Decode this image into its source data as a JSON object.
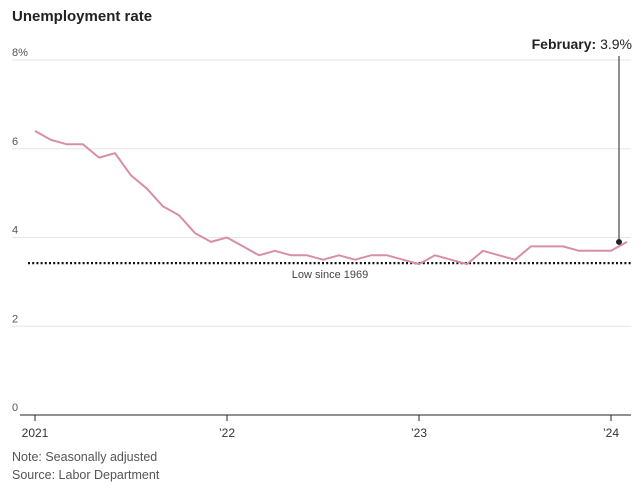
{
  "title": "Unemployment rate",
  "footer": {
    "note": "Note: Seasonally adjusted",
    "source": "Source: Labor Department"
  },
  "colors": {
    "line": "#d88ea8",
    "grid": "#e6e6e6",
    "reference": "#111111",
    "annotation": "#222222"
  },
  "chart_data": {
    "type": "line",
    "title": "Unemployment rate",
    "xlabel": "",
    "ylabel": "",
    "ylim": [
      0,
      8
    ],
    "grid": true,
    "y_ticks": [
      {
        "value": 0,
        "label": "0"
      },
      {
        "value": 2,
        "label": "2"
      },
      {
        "value": 4,
        "label": "4"
      },
      {
        "value": 6,
        "label": "6"
      },
      {
        "value": 8,
        "label": "8%"
      }
    ],
    "x_ticks": [
      {
        "value": "2021-01",
        "label": "2021"
      },
      {
        "value": "2022-01",
        "label": "’22"
      },
      {
        "value": "2023-01",
        "label": "’23"
      },
      {
        "value": "2024-01",
        "label": "’24"
      }
    ],
    "series": [
      {
        "x": [
          "2021-01",
          "2021-02",
          "2021-03",
          "2021-04",
          "2021-05",
          "2021-06",
          "2021-07",
          "2021-08",
          "2021-09",
          "2021-10",
          "2021-11",
          "2021-12",
          "2022-01",
          "2022-02",
          "2022-03",
          "2022-04",
          "2022-05",
          "2022-06",
          "2022-07",
          "2022-08",
          "2022-09",
          "2022-10",
          "2022-11",
          "2022-12",
          "2023-01",
          "2023-02",
          "2023-03",
          "2023-04",
          "2023-05",
          "2023-06",
          "2023-07",
          "2023-08",
          "2023-09",
          "2023-10",
          "2023-11",
          "2023-12",
          "2024-01",
          "2024-02"
        ],
        "values": [
          6.4,
          6.2,
          6.1,
          6.1,
          5.8,
          5.9,
          5.4,
          5.1,
          4.7,
          4.5,
          4.1,
          3.9,
          4.0,
          3.8,
          3.6,
          3.7,
          3.6,
          3.6,
          3.5,
          3.6,
          3.5,
          3.6,
          3.6,
          3.5,
          3.4,
          3.6,
          3.5,
          3.4,
          3.7,
          3.6,
          3.5,
          3.8,
          3.8,
          3.8,
          3.7,
          3.7,
          3.7,
          3.9
        ]
      }
    ],
    "reference_line": {
      "value": 3.4,
      "label": "Low since 1969"
    },
    "annotation": {
      "x": "2024-02",
      "value": 3.9,
      "label_bold": "February:",
      "label_value": "3.9%"
    }
  }
}
